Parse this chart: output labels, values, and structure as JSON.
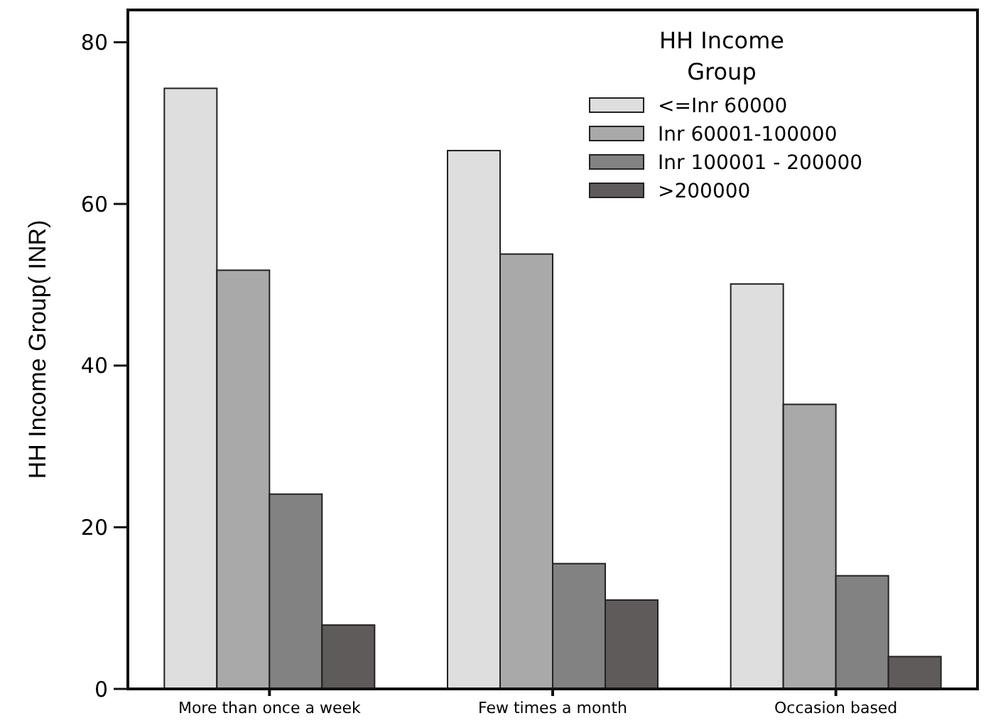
{
  "chart_data": {
    "type": "bar",
    "ylabel": "HH Income Group( INR)",
    "legend_title": "HH Income Group",
    "legend": "top right",
    "categories": [
      "More than once a week",
      "Few times a month",
      "Occasion based"
    ],
    "series": [
      {
        "name": "<=Inr 60000",
        "color": "#dedede",
        "values": [
          74.3,
          66.6,
          50.1
        ]
      },
      {
        "name": "Inr 60001-100000",
        "color": "#a9a9a9",
        "values": [
          51.8,
          53.8,
          35.2
        ]
      },
      {
        "name": "Inr 100001 - 200000",
        "color": "#828282",
        "values": [
          24.1,
          15.5,
          14.0
        ]
      },
      {
        "name": ">200000",
        "color": "#5f5b5b",
        "values": [
          7.9,
          11.0,
          4.0
        ]
      }
    ],
    "ylim": [
      0,
      84
    ],
    "yticks": [
      0,
      20,
      40,
      60,
      80
    ]
  }
}
